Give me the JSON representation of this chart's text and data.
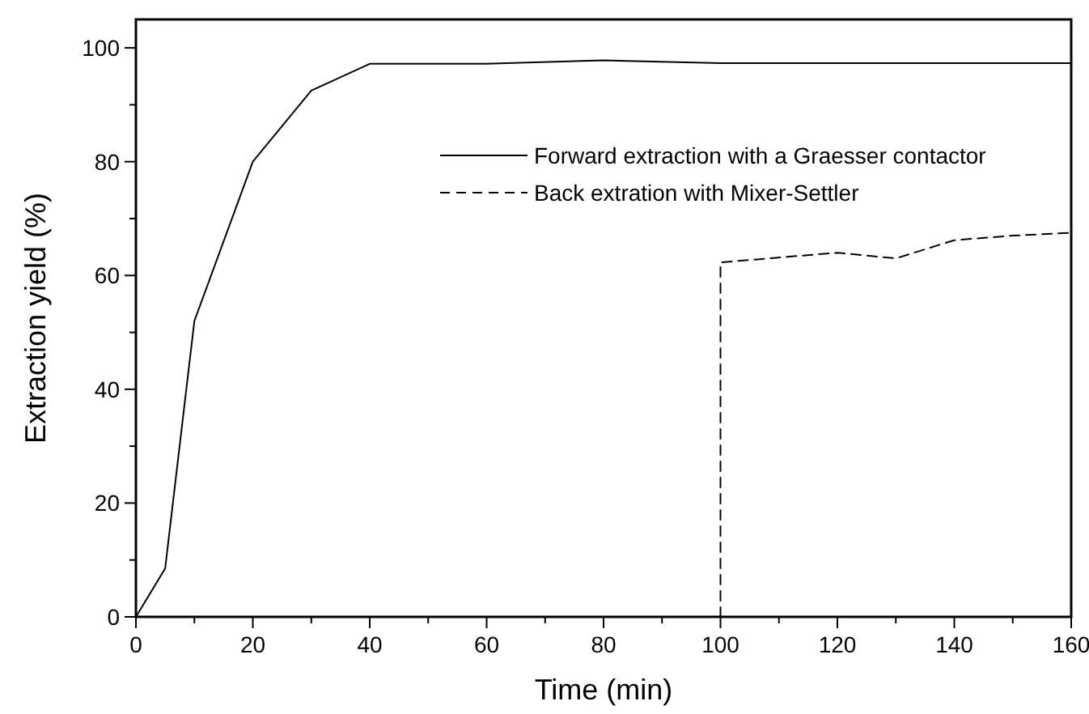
{
  "chart_data": {
    "type": "line",
    "xlabel": "Time (min)",
    "ylabel": "Extraction yield (%)",
    "xlim": [
      0,
      160
    ],
    "ylim": [
      0,
      105
    ],
    "xticks": [
      0,
      {
        "value": 10,
        "label": null
      },
      20,
      {
        "value": 30,
        "label": null
      },
      40,
      {
        "value": 50,
        "label": null
      },
      60,
      {
        "value": 70,
        "label": null
      },
      80,
      {
        "value": 90,
        "label": null
      },
      100,
      {
        "value": 110,
        "label": null
      },
      120,
      {
        "value": 130,
        "label": null
      },
      140,
      {
        "value": 150,
        "label": null
      },
      160
    ],
    "yticks": [
      0,
      {
        "value": 10,
        "label": null
      },
      20,
      {
        "value": 30,
        "label": null
      },
      40,
      {
        "value": 50,
        "label": null
      },
      60,
      {
        "value": 70,
        "label": null
      },
      80,
      {
        "value": 90,
        "label": null
      },
      100
    ],
    "grid": false,
    "legend": "top right",
    "marker": "none",
    "series": [
      {
        "name": "Forward extraction with a Graesser contactor",
        "color": "#000000",
        "line_style": "solid",
        "x": [
          0,
          5,
          10,
          20,
          30,
          40,
          60,
          80,
          100,
          120,
          140,
          160
        ],
        "values": [
          0,
          8.5,
          52,
          80,
          92.5,
          97.2,
          97.2,
          97.8,
          97.3,
          97.3,
          97.3,
          97.3
        ]
      },
      {
        "name": "Back extration with Mixer-Settler",
        "color": "#000000",
        "line_style": "dashed",
        "x": [
          100,
          100,
          120,
          130,
          140,
          150,
          160
        ],
        "values": [
          0,
          62.3,
          64,
          63,
          66.2,
          67,
          67.5
        ]
      }
    ]
  }
}
